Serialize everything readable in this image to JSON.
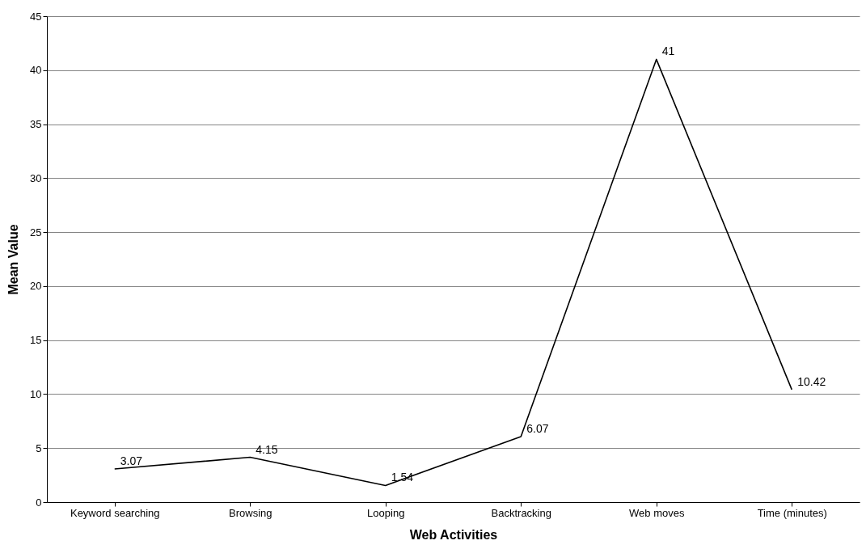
{
  "chart_data": {
    "type": "line",
    "xlabel": "Web Activities",
    "ylabel": "Mean Value",
    "categories": [
      "Keyword searching",
      "Browsing",
      "Looping",
      "Backtracking",
      "Web moves",
      "Time (minutes)"
    ],
    "series": [
      {
        "color": "#000000",
        "values": [
          3.07,
          4.15,
          1.54,
          6.07,
          41,
          10.42
        ]
      }
    ],
    "ylim": [
      0,
      45
    ],
    "yticks": [
      0,
      5,
      10,
      15,
      20,
      25,
      30,
      35,
      40,
      45
    ],
    "grid": "y",
    "data_labels": true,
    "marker": "none",
    "line_style": "solid"
  }
}
